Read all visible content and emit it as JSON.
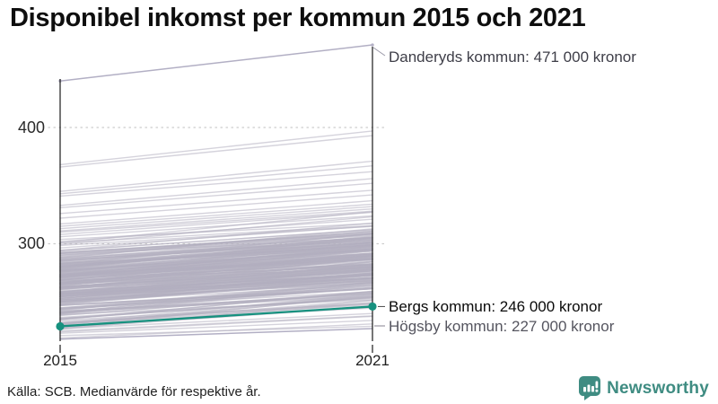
{
  "page": {
    "source": "Källa: SCB. Medianvärde för respektive år.",
    "brand": "Newsworthy"
  },
  "colors": {
    "background_line": "#b2afc4",
    "highlight": "#17917f",
    "axis": "#1a1a1a",
    "gridline": "#cccccc",
    "brand_teal": "#3f8c82"
  },
  "chart_data": {
    "type": "line",
    "subtype": "slope",
    "title": "Disponibel inkomst per kommun 2015 och 2021",
    "x_categories": [
      "2015",
      "2021"
    ],
    "y_tick_labels": [
      "400",
      "300"
    ],
    "y_ticks": [
      400,
      300
    ],
    "ylim": [
      215,
      480
    ],
    "grid": "dotted-horizontal",
    "legend": "none",
    "annotated_series": [
      {
        "name": "Danderyds kommun",
        "values": [
          440,
          471
        ],
        "label": "Danderyds kommun: 471 000 kronor",
        "style": "gray"
      },
      {
        "name": "Bergs kommun",
        "values": [
          229,
          246
        ],
        "label": "Bergs kommun: 246 000 kronor",
        "style": "teal-highlight"
      },
      {
        "name": "Högsby kommun",
        "values": [
          218,
          227
        ],
        "label": "Högsby kommun: 227 000 kronor",
        "style": "gray"
      }
    ],
    "background_pairs": [
      [
        368,
        397
      ],
      [
        366,
        393
      ],
      [
        345,
        371
      ],
      [
        343,
        367
      ],
      [
        341,
        362
      ],
      [
        333,
        356
      ],
      [
        331,
        352
      ],
      [
        326,
        346
      ],
      [
        322,
        342
      ],
      [
        317,
        337
      ],
      [
        315,
        334
      ],
      [
        313,
        332
      ],
      [
        311,
        330
      ],
      [
        310,
        328
      ],
      [
        308,
        327
      ],
      [
        306,
        324
      ],
      [
        219,
        231
      ],
      [
        221,
        229
      ],
      [
        223,
        234
      ],
      [
        225,
        238
      ],
      [
        227,
        240
      ]
    ],
    "background_band": {
      "count": 250,
      "v2015_min": 222,
      "v2015_max": 308,
      "delta_min": 13,
      "delta_max": 27,
      "seed": 11
    }
  }
}
